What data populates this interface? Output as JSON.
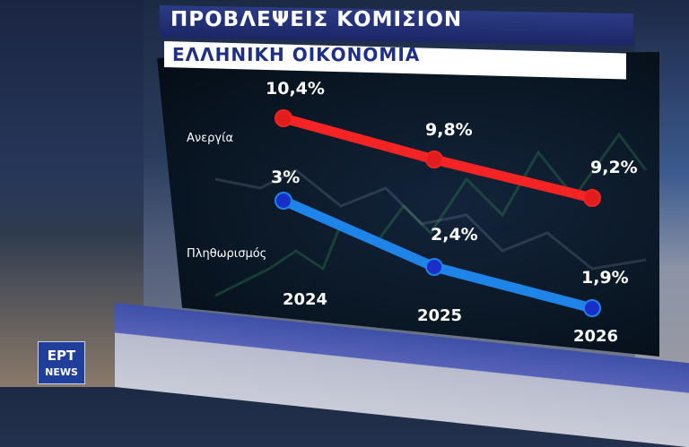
{
  "header": {
    "title": "ΠΡΟΒΛΕΨΕΙΣ ΚΟΜΙΣΙΟΝ",
    "subtitle": "ΕΛΛΗΝΙΚΗ ΟΙΚΟΝΟΜΙΑ"
  },
  "logo": {
    "top": "ΕΡΤ",
    "bottom": "NEWS"
  },
  "colors": {
    "series_unemployment": "#f52424",
    "series_inflation": "#1e84e8",
    "point_unemployment": "#e01c1c",
    "point_inflation": "#1a2ec8"
  },
  "chart_data": {
    "type": "line",
    "categories": [
      "2024",
      "2025",
      "2026"
    ],
    "series": [
      {
        "name": "Ανεργία",
        "values": [
          10.4,
          9.8,
          9.2
        ],
        "value_labels": [
          "10,4%",
          "9,8%",
          "9,2%"
        ]
      },
      {
        "name": "Πληθωρισμός",
        "values": [
          3,
          2.4,
          1.9
        ],
        "value_labels": [
          "3%",
          "2,4%",
          "1,9%"
        ]
      }
    ],
    "grid": false,
    "legend": "series names printed at left of each line"
  }
}
